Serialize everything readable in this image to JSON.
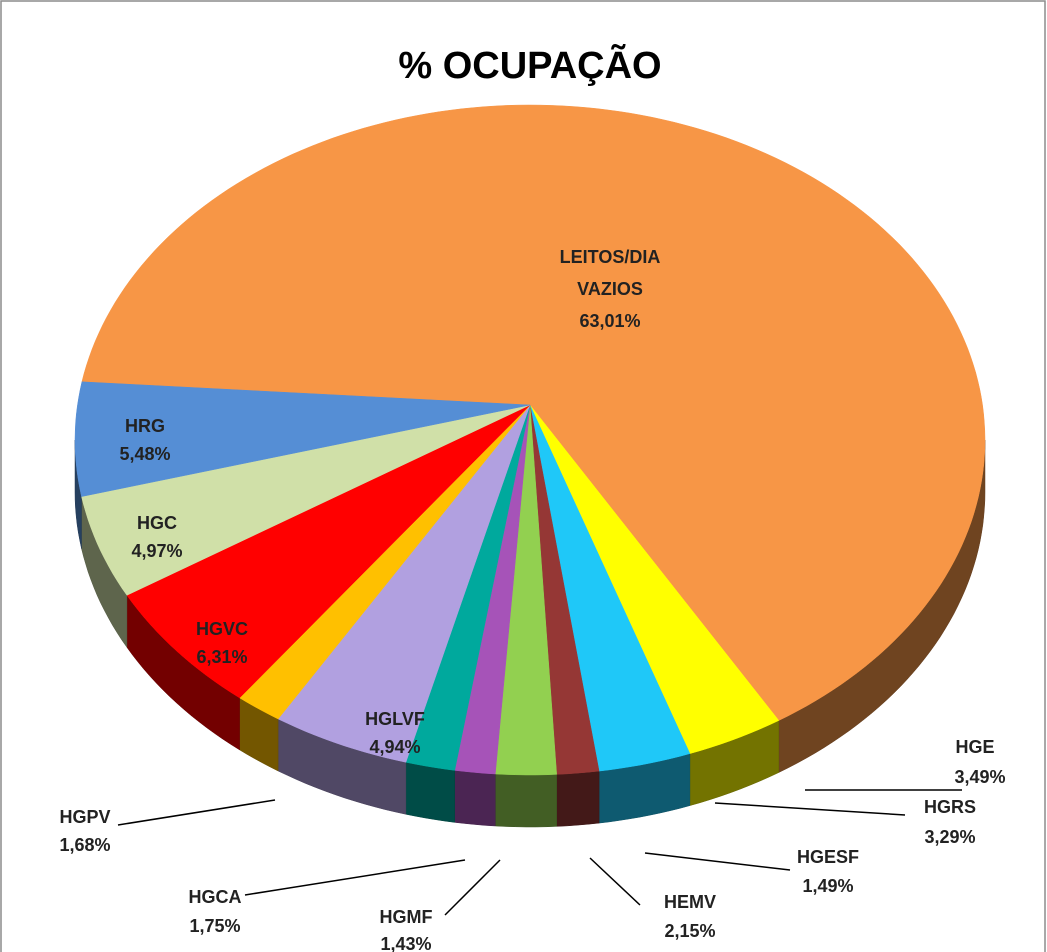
{
  "chart_data": {
    "type": "pie3d",
    "title": "% OCUPAÇÃO",
    "categories": [
      "LEITOS/DIA VAZIOS",
      "HGE",
      "HGRS",
      "HGESF",
      "HEMV",
      "HGMF",
      "HGCA",
      "HGLVF",
      "HGPV",
      "HGVC",
      "HGC",
      "HRG"
    ],
    "values": [
      63.01,
      3.49,
      3.29,
      1.49,
      2.15,
      1.43,
      1.75,
      4.94,
      1.68,
      6.31,
      4.97,
      5.48
    ],
    "value_labels": [
      "63,01%",
      "3,49%",
      "3,29%",
      "1,49%",
      "2,15%",
      "1,43%",
      "1,75%",
      "4,94%",
      "1,68%",
      "6,31%",
      "4,97%",
      "5,48%"
    ],
    "colors": [
      "#f79646",
      "#ffff00",
      "#1fc8f8",
      "#953735",
      "#92d050",
      "#a653b8",
      "#00a99d",
      "#b1a0e0",
      "#ffc000",
      "#ff0000",
      "#d0e0a8",
      "#558ed5"
    ]
  }
}
